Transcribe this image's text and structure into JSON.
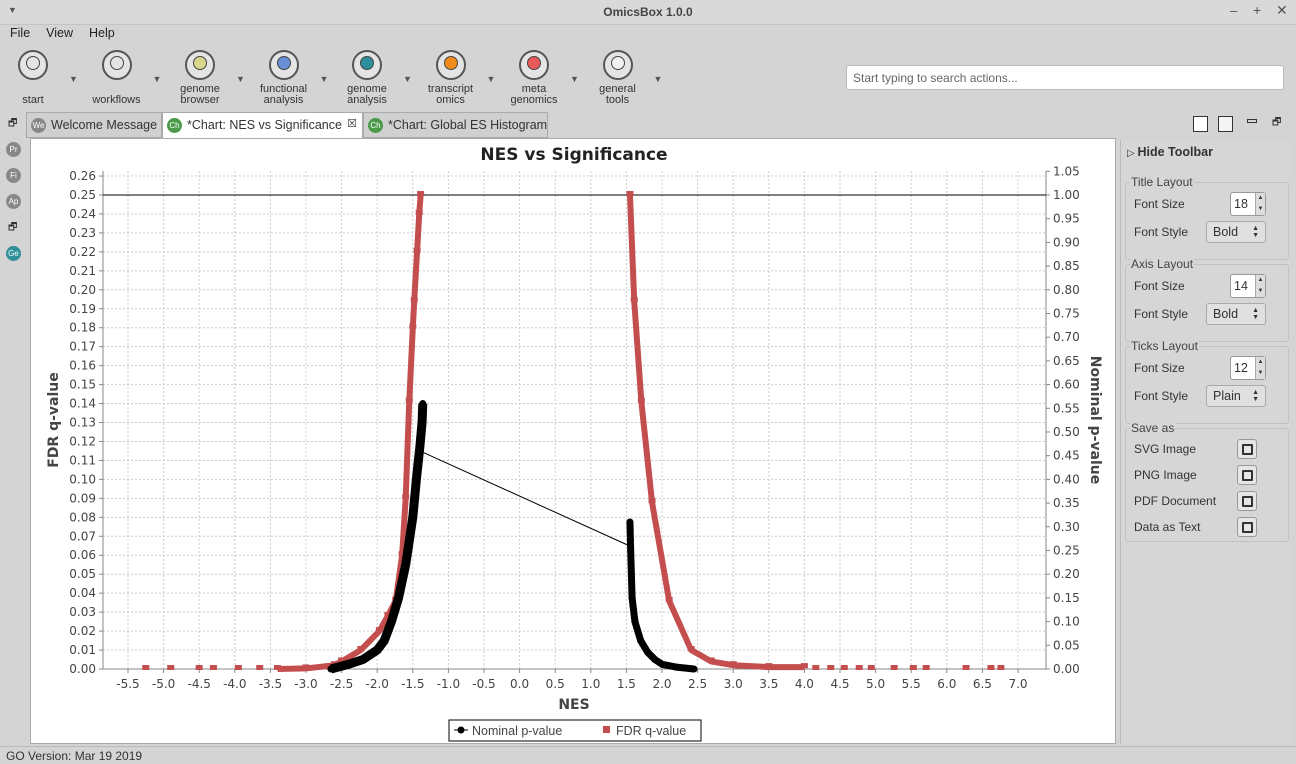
{
  "window": {
    "title": "OmicsBox 1.0.0"
  },
  "menu": [
    "File",
    "View",
    "Help"
  ],
  "toolbar": [
    {
      "label1": "",
      "label2": "start",
      "color": "#e4e4e4",
      "icon": "start-icon"
    },
    {
      "label1": "",
      "label2": "workflows",
      "color": "#e4e4e4",
      "icon": "workflows-icon"
    },
    {
      "label1": "genome",
      "label2": "browser",
      "color": "#d8d88c",
      "icon": "genome-browser-icon"
    },
    {
      "label1": "functional",
      "label2": "analysis",
      "color": "#6a8fd4",
      "icon": "functional-analysis-icon"
    },
    {
      "label1": "genome",
      "label2": "analysis",
      "color": "#2f8f9a",
      "icon": "genome-analysis-icon"
    },
    {
      "label1": "transcript",
      "label2": "omics",
      "color": "#f08c1c",
      "icon": "transcriptomics-icon"
    },
    {
      "label1": "meta",
      "label2": "genomics",
      "color": "#e85a5a",
      "icon": "metagenomics-icon"
    },
    {
      "label1": "general",
      "label2": "tools",
      "color": "#f0f0f0",
      "icon": "general-tools-icon"
    }
  ],
  "search": {
    "placeholder": "Start typing to search actions..."
  },
  "tabs": [
    {
      "badge": "We",
      "label": "Welcome Message",
      "color": "#888"
    },
    {
      "badge": "Ch",
      "label": "*Chart: NES vs Significance",
      "color": "#4a9a4a"
    },
    {
      "badge": "Ch",
      "label": "*Chart: Global ES Histogram",
      "color": "#4a9a4a"
    }
  ],
  "side_icons": [
    "Pr",
    "Fi",
    "Ap",
    "Ge"
  ],
  "right_panel": {
    "hide_toolbar": "Hide Toolbar",
    "title_layout": {
      "label": "Title Layout",
      "font_size_label": "Font Size",
      "font_size": "18",
      "font_style_label": "Font Style",
      "font_style": "Bold"
    },
    "axis_layout": {
      "label": "Axis Layout",
      "font_size_label": "Font Size",
      "font_size": "14",
      "font_style_label": "Font Style",
      "font_style": "Bold"
    },
    "ticks_layout": {
      "label": "Ticks Layout",
      "font_size_label": "Font Size",
      "font_size": "12",
      "font_style_label": "Font Style",
      "font_style": "Plain"
    },
    "save_as": {
      "label": "Save as",
      "items": [
        "SVG Image",
        "PNG Image",
        "PDF Document",
        "Data as Text"
      ]
    }
  },
  "status": "GO Version: Mar 19 2019",
  "chart_data": {
    "type": "scatter",
    "title": "NES vs Significance",
    "xlabel": "NES",
    "ylabel": "FDR q-value",
    "y2label": "Nominal p-value",
    "xlim": [
      -5.85,
      7.39
    ],
    "ylim": [
      0,
      0.26
    ],
    "y2lim": [
      0,
      1.05
    ],
    "xticks": [
      -5.5,
      -5.0,
      -4.5,
      -4.0,
      -3.5,
      -3.0,
      -2.5,
      -2.0,
      -1.5,
      -1.0,
      -0.5,
      0.0,
      0.5,
      1.0,
      1.5,
      2.0,
      2.5,
      3.0,
      3.5,
      4.0,
      4.5,
      5.0,
      5.5,
      6.0,
      6.5,
      7.0
    ],
    "yticks": [
      0,
      0.01,
      0.02,
      0.03,
      0.04,
      0.05,
      0.06,
      0.07,
      0.08,
      0.09,
      0.1,
      0.11,
      0.12,
      0.13,
      0.14,
      0.15,
      0.16,
      0.17,
      0.18,
      0.19,
      0.2,
      0.21,
      0.22,
      0.23,
      0.24,
      0.25,
      0.26
    ],
    "y2ticks": [
      0,
      0.05,
      0.1,
      0.15,
      0.2,
      0.25,
      0.3,
      0.35,
      0.4,
      0.45,
      0.5,
      0.55,
      0.6,
      0.65,
      0.7,
      0.75,
      0.8,
      0.85,
      0.9,
      0.95,
      1.0,
      1.05
    ],
    "threshold_fdr": 0.25,
    "grid": true,
    "legend": {
      "position": "bottom",
      "entries": [
        "Nominal p-value",
        "FDR q-value"
      ]
    },
    "series": [
      {
        "name": "FDR q-value",
        "axis": "left",
        "color": "#c44e4e",
        "sparse": [
          [
            -5.25,
            0
          ],
          [
            -4.9,
            0
          ],
          [
            -4.5,
            0
          ],
          [
            -4.3,
            0
          ],
          [
            -3.95,
            0
          ],
          [
            -3.65,
            0
          ],
          [
            4.16,
            0
          ],
          [
            4.37,
            0
          ],
          [
            4.56,
            0
          ],
          [
            4.77,
            0
          ],
          [
            4.94,
            0
          ],
          [
            5.26,
            0
          ],
          [
            5.53,
            0
          ],
          [
            5.71,
            0
          ],
          [
            6.27,
            0
          ],
          [
            6.62,
            0
          ],
          [
            6.76,
            0
          ]
        ],
        "neg": [
          [
            -3.4,
            0
          ],
          [
            -3.0,
            0.0003
          ],
          [
            -2.6,
            0.002
          ],
          [
            -2.5,
            0.004
          ],
          [
            -2.23,
            0.01
          ],
          [
            -1.97,
            0.02
          ],
          [
            -1.85,
            0.028
          ],
          [
            -1.74,
            0.036
          ],
          [
            -1.65,
            0.06
          ],
          [
            -1.6,
            0.09
          ],
          [
            -1.55,
            0.141
          ],
          [
            -1.5,
            0.18
          ],
          [
            -1.48,
            0.194
          ],
          [
            -1.44,
            0.22
          ],
          [
            -1.41,
            0.24
          ],
          [
            -1.39,
            0.25
          ]
        ],
        "pos": [
          [
            1.55,
            0.25
          ],
          [
            1.61,
            0.194
          ],
          [
            1.71,
            0.141
          ],
          [
            1.86,
            0.088
          ],
          [
            2.1,
            0.036
          ],
          [
            2.41,
            0.01
          ],
          [
            2.69,
            0.004
          ],
          [
            3.0,
            0.002
          ],
          [
            3.5,
            0.001
          ],
          [
            4.0,
            0.001
          ]
        ]
      },
      {
        "name": "Nominal p-value",
        "axis": "right",
        "color": "#000000",
        "neg": [
          [
            -2.65,
            0
          ],
          [
            -2.4,
            0.01
          ],
          [
            -2.2,
            0.02
          ],
          [
            -2.0,
            0.04
          ],
          [
            -1.9,
            0.06
          ],
          [
            -1.8,
            0.1
          ],
          [
            -1.7,
            0.15
          ],
          [
            -1.6,
            0.22
          ],
          [
            -1.5,
            0.32
          ],
          [
            -1.45,
            0.4
          ],
          [
            -1.4,
            0.47
          ],
          [
            -1.37,
            0.52
          ],
          [
            -1.36,
            0.56
          ]
        ],
        "bridge": [
          [
            -1.4,
            0.46
          ],
          [
            1.54,
            0.26
          ]
        ],
        "pos": [
          [
            1.55,
            0.31
          ],
          [
            1.56,
            0.25
          ],
          [
            1.58,
            0.15
          ],
          [
            1.62,
            0.1
          ],
          [
            1.7,
            0.06
          ],
          [
            1.8,
            0.035
          ],
          [
            1.9,
            0.02
          ],
          [
            2.0,
            0.01
          ],
          [
            2.2,
            0.004
          ],
          [
            2.45,
            0
          ]
        ]
      }
    ]
  }
}
